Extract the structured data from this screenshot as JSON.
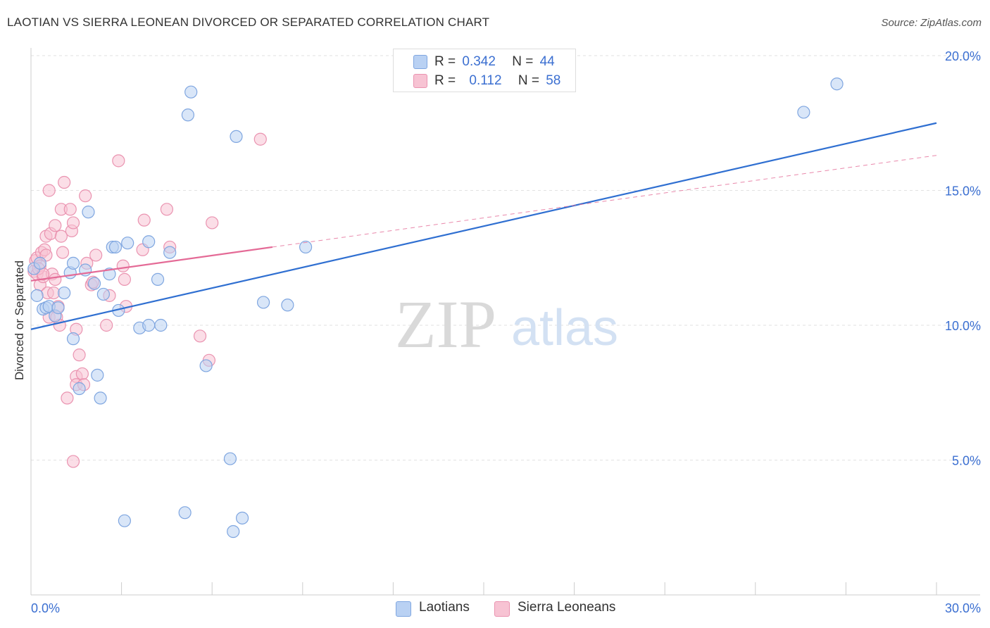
{
  "header": {
    "title": "LAOTIAN VS SIERRA LEONEAN DIVORCED OR SEPARATED CORRELATION CHART",
    "source": "Source: ZipAtlas.com"
  },
  "legend": {
    "rows": [
      {
        "r_label": "R =",
        "r_value": "0.342",
        "n_label": "N =",
        "n_value": "44"
      },
      {
        "r_label": "R =",
        "r_value": "0.112",
        "n_label": "N =",
        "n_value": "58"
      }
    ]
  },
  "watermark": {
    "zip": "ZIP",
    "atlas": "atlas"
  },
  "colors": {
    "blue_fill": "#b9d1f3",
    "blue_stroke": "#7fa6e0",
    "blue_line": "#2f6fd1",
    "pink_fill": "#f7c3d3",
    "pink_stroke": "#ea93b0",
    "pink_line": "#e46a96",
    "tick_text": "#3b6fd1",
    "grid": "#e2e2e2"
  },
  "chart_data": {
    "type": "scatter",
    "title": "LAOTIAN VS SIERRA LEONEAN DIVORCED OR SEPARATED CORRELATION CHART",
    "xlabel": "",
    "ylabel": "Divorced or Separated",
    "xlim": [
      0,
      30
    ],
    "ylim": [
      0,
      21
    ],
    "x_tick_labels": [
      "0.0%",
      "30.0%"
    ],
    "y_ticks": [
      5,
      10,
      15,
      20
    ],
    "y_tick_labels": [
      "5.0%",
      "10.0%",
      "15.0%",
      "20.0%"
    ],
    "grid": "horizontal dashed",
    "legend_position": "top-center",
    "series": [
      {
        "name": "Laotians",
        "color": "#b9d1f3",
        "r": 0.342,
        "n": 44,
        "trend": {
          "x": [
            0,
            30
          ],
          "y": [
            9.85,
            17.5
          ],
          "style": "solid"
        },
        "points": [
          [
            0.2,
            11.1
          ],
          [
            0.4,
            10.6
          ],
          [
            0.5,
            10.65
          ],
          [
            0.6,
            10.7
          ],
          [
            0.8,
            10.35
          ],
          [
            0.9,
            10.65
          ],
          [
            1.1,
            11.2
          ],
          [
            1.3,
            11.95
          ],
          [
            1.4,
            12.3
          ],
          [
            1.4,
            9.5
          ],
          [
            1.6,
            7.65
          ],
          [
            1.8,
            12.05
          ],
          [
            1.9,
            14.2
          ],
          [
            2.1,
            11.55
          ],
          [
            2.2,
            8.15
          ],
          [
            2.3,
            7.3
          ],
          [
            2.4,
            11.15
          ],
          [
            2.6,
            11.9
          ],
          [
            2.7,
            12.9
          ],
          [
            2.8,
            12.9
          ],
          [
            2.9,
            10.55
          ],
          [
            3.1,
            2.75
          ],
          [
            3.2,
            13.05
          ],
          [
            3.6,
            9.9
          ],
          [
            3.9,
            13.1
          ],
          [
            3.9,
            10.0
          ],
          [
            4.2,
            11.7
          ],
          [
            4.3,
            10.0
          ],
          [
            4.6,
            12.7
          ],
          [
            5.1,
            3.05
          ],
          [
            5.2,
            17.8
          ],
          [
            5.3,
            18.65
          ],
          [
            5.8,
            8.5
          ],
          [
            6.6,
            5.05
          ],
          [
            6.7,
            2.35
          ],
          [
            6.8,
            17.0
          ],
          [
            7.0,
            2.85
          ],
          [
            7.7,
            10.85
          ],
          [
            8.5,
            10.75
          ],
          [
            9.1,
            12.9
          ],
          [
            25.6,
            17.9
          ],
          [
            26.7,
            18.95
          ],
          [
            0.1,
            12.1
          ],
          [
            0.3,
            12.3
          ]
        ]
      },
      {
        "name": "Sierra Leoneans",
        "color": "#f7c3d3",
        "r": 0.112,
        "n": 58,
        "trend": {
          "x": [
            0,
            8
          ],
          "y": [
            11.65,
            12.9
          ],
          "style": "solid",
          "extended_x": [
            8,
            30
          ],
          "extended_y": [
            12.9,
            16.3
          ],
          "extended_style": "dashed"
        },
        "points": [
          [
            0.1,
            12.0
          ],
          [
            0.15,
            12.4
          ],
          [
            0.2,
            11.9
          ],
          [
            0.2,
            12.5
          ],
          [
            0.3,
            11.5
          ],
          [
            0.3,
            12.2
          ],
          [
            0.35,
            12.7
          ],
          [
            0.4,
            11.8
          ],
          [
            0.45,
            12.8
          ],
          [
            0.5,
            13.3
          ],
          [
            0.5,
            12.6
          ],
          [
            0.55,
            11.2
          ],
          [
            0.6,
            10.3
          ],
          [
            0.6,
            15.0
          ],
          [
            0.65,
            13.4
          ],
          [
            0.7,
            11.9
          ],
          [
            0.75,
            11.2
          ],
          [
            0.8,
            13.7
          ],
          [
            0.8,
            11.7
          ],
          [
            0.85,
            10.3
          ],
          [
            0.9,
            10.7
          ],
          [
            0.95,
            10.0
          ],
          [
            1.0,
            13.3
          ],
          [
            1.0,
            14.3
          ],
          [
            1.05,
            12.7
          ],
          [
            1.1,
            15.3
          ],
          [
            1.2,
            7.3
          ],
          [
            1.3,
            14.3
          ],
          [
            1.35,
            13.5
          ],
          [
            1.4,
            13.8
          ],
          [
            1.4,
            4.95
          ],
          [
            1.5,
            9.85
          ],
          [
            1.5,
            8.1
          ],
          [
            1.5,
            7.8
          ],
          [
            1.6,
            8.9
          ],
          [
            1.7,
            8.2
          ],
          [
            1.75,
            7.8
          ],
          [
            1.8,
            14.8
          ],
          [
            1.85,
            12.3
          ],
          [
            2.0,
            11.5
          ],
          [
            2.05,
            11.6
          ],
          [
            2.15,
            12.6
          ],
          [
            2.5,
            10.0
          ],
          [
            2.6,
            11.1
          ],
          [
            2.9,
            16.1
          ],
          [
            3.05,
            12.2
          ],
          [
            3.1,
            11.7
          ],
          [
            3.15,
            10.7
          ],
          [
            3.7,
            12.8
          ],
          [
            3.75,
            13.9
          ],
          [
            4.5,
            14.3
          ],
          [
            4.6,
            12.9
          ],
          [
            5.6,
            9.6
          ],
          [
            5.9,
            8.7
          ],
          [
            6.0,
            13.8
          ],
          [
            7.6,
            16.9
          ],
          [
            0.25,
            12.1
          ],
          [
            0.4,
            11.9
          ]
        ]
      }
    ]
  },
  "bottom_legend": {
    "items": [
      "Laotians",
      "Sierra Leoneans"
    ]
  }
}
